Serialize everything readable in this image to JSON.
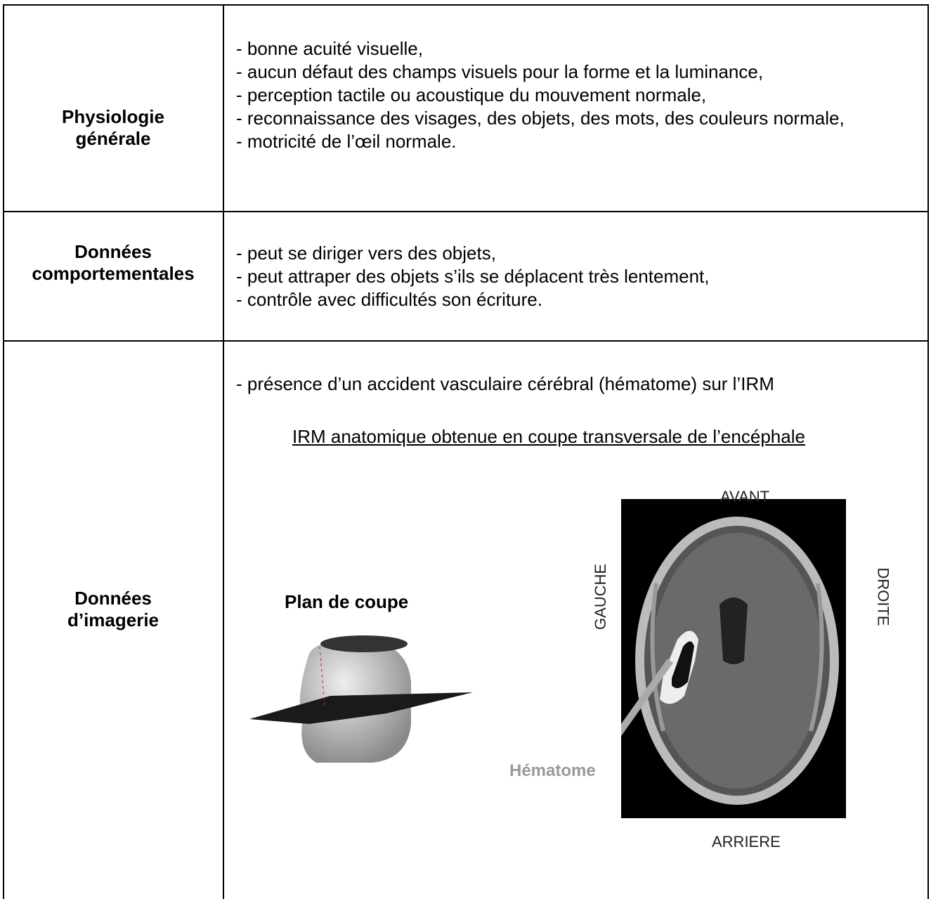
{
  "rows": [
    {
      "label": [
        "Physiologie",
        "générale"
      ],
      "items": [
        "- bonne acuité visuelle,",
        "- aucun défaut des champs visuels pour la forme et la luminance,",
        "- perception tactile ou acoustique du mouvement normale,",
        "- reconnaissance des visages, des objets, des mots, des couleurs normale,",
        "- motricité de l’œil normale."
      ]
    },
    {
      "label": [
        "Données",
        "comportementales"
      ],
      "items": [
        "- peut se diriger vers des objets,",
        "- peut attraper des objets s’ils se déplacent très lentement,",
        "- contrôle avec difficultés son écriture."
      ]
    },
    {
      "label": [
        "Données",
        "d’imagerie"
      ],
      "items": [
        "- présence d’un accident vasculaire cérébral (hématome) sur l’IRM"
      ]
    }
  ],
  "figure": {
    "caption": "IRM anatomique obtenue en coupe transversale de l’encéphale",
    "cut_plane_label": "Plan de coupe",
    "labels": {
      "front": "AVANT",
      "back": "ARRIERE",
      "left": "GAUCHE",
      "right": "DROITE",
      "lesion": "Hématome"
    }
  }
}
